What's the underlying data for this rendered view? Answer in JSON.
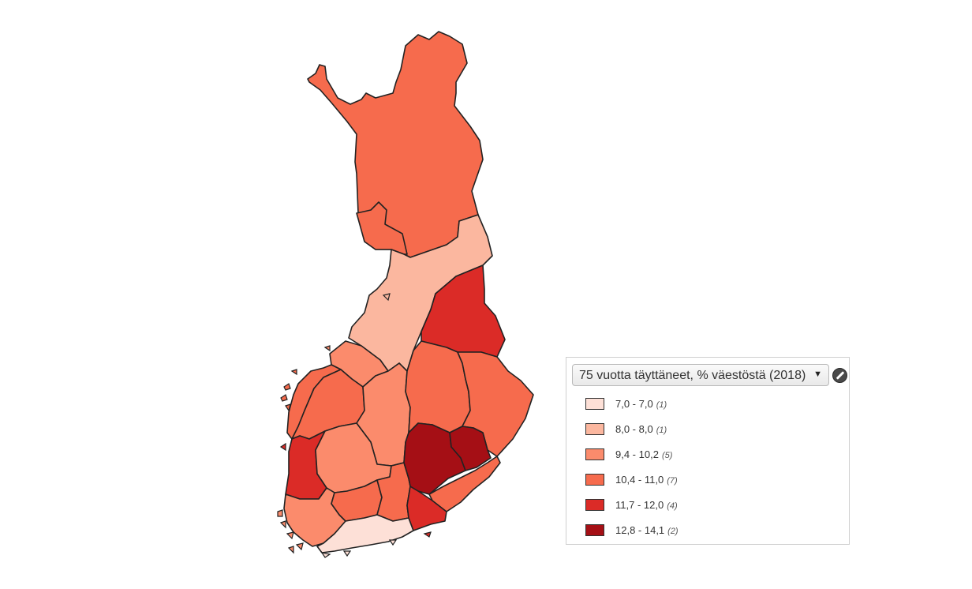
{
  "map": {
    "regions": [
      {
        "id": "lappi",
        "class": 3
      },
      {
        "id": "kainuu",
        "class": 2
      },
      {
        "id": "pohjois-pohjanmaa",
        "class": 1
      },
      {
        "id": "keski-pohjanmaa",
        "class": 2
      },
      {
        "id": "pohjanmaa",
        "class": 3
      },
      {
        "id": "etela-pohjanmaa",
        "class": 3
      },
      {
        "id": "keski-suomi",
        "class": 2
      },
      {
        "id": "pohjois-savo",
        "class": 3
      },
      {
        "id": "pohjois-karjala",
        "class": 3
      },
      {
        "id": "satakunta",
        "class": 4
      },
      {
        "id": "pirkanmaa",
        "class": 2
      },
      {
        "id": "varsinais-suomi",
        "class": 2
      },
      {
        "id": "kanta-hame",
        "class": 3
      },
      {
        "id": "paijat-hame",
        "class": 3
      },
      {
        "id": "uusimaa",
        "class": 0
      },
      {
        "id": "kymenlaakso",
        "class": 4
      },
      {
        "id": "etela-karjala",
        "class": 3
      },
      {
        "id": "etela-savo",
        "class": 5
      },
      {
        "id": "ita-savo",
        "class": 5
      },
      {
        "id": "oulunkaari",
        "class": 4
      },
      {
        "id": "koillismaa",
        "class": 3
      }
    ]
  },
  "legend": {
    "indicator": "75 vuotta täyttäneet, % väestöstä (2018)",
    "classes": [
      {
        "range": "7,0 - 7,0",
        "count": "(1)",
        "color": "#fde0d7"
      },
      {
        "range": "8,0 - 8,0",
        "count": "(1)",
        "color": "#fbb79f"
      },
      {
        "range": "9,4 - 10,2",
        "count": "(5)",
        "color": "#fb8b6c"
      },
      {
        "range": "10,4 - 11,0",
        "count": "(7)",
        "color": "#f66b4d"
      },
      {
        "range": "11,7 - 12,0",
        "count": "(4)",
        "color": "#db2b27"
      },
      {
        "range": "12,8 - 14,1",
        "count": "(2)",
        "color": "#a50f15"
      }
    ]
  },
  "icons": {
    "dropdown": "triangle-down-icon",
    "edit": "pencil-icon"
  }
}
